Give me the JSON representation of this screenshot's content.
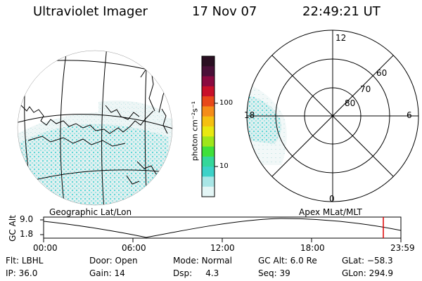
{
  "header": {
    "instrument": "Ultraviolet Imager",
    "date": "17 Nov 07",
    "time": "22:49:21 UT"
  },
  "colorbar": {
    "unit_label": "photon cm⁻²s⁻¹",
    "ticks": [
      "100",
      "10"
    ],
    "colors": [
      "#2a0f22",
      "#4a1038",
      "#8a0a40",
      "#c8102a",
      "#e8481a",
      "#f58c18",
      "#f5c010",
      "#e8e810",
      "#9ee61a",
      "#3fe03a",
      "#34d79a",
      "#3cd2c8",
      "#a8e6e6",
      "#e4f6f6"
    ]
  },
  "geo_map": {
    "label": "Geographic Lat/Lon",
    "aurora_color": "#5fd8d8"
  },
  "polar_plot": {
    "label": "Apex MLat/MLT",
    "mlt_labels": [
      "12",
      "18",
      "6",
      "0"
    ],
    "lat_labels": [
      "60",
      "70",
      "80"
    ]
  },
  "altitude_plot": {
    "ylabel": "GC Alt",
    "y_ticks": [
      "9.0",
      "1.8"
    ],
    "x_ticks": [
      "00:00",
      "06:00",
      "12:00",
      "18:00",
      "23:59"
    ],
    "marker_color": "#dd0000"
  },
  "status": {
    "row1": [
      {
        "key": "Flt:",
        "value": "LBHL"
      },
      {
        "key": "Door:",
        "value": "Open"
      },
      {
        "key": "Mode:",
        "value": "Normal"
      },
      {
        "key": "GC Alt:",
        "value": "6.0 Re"
      },
      {
        "key": "GLat:",
        "value": "−58.3"
      }
    ],
    "row2": [
      {
        "key": "IP:",
        "value": "36.0"
      },
      {
        "key": "Gain:",
        "value": "14"
      },
      {
        "key": "Dsp:",
        "value": "4.3"
      },
      {
        "key": "Seq:",
        "value": "39"
      },
      {
        "key": "GLon:",
        "value": "294.9"
      }
    ]
  }
}
